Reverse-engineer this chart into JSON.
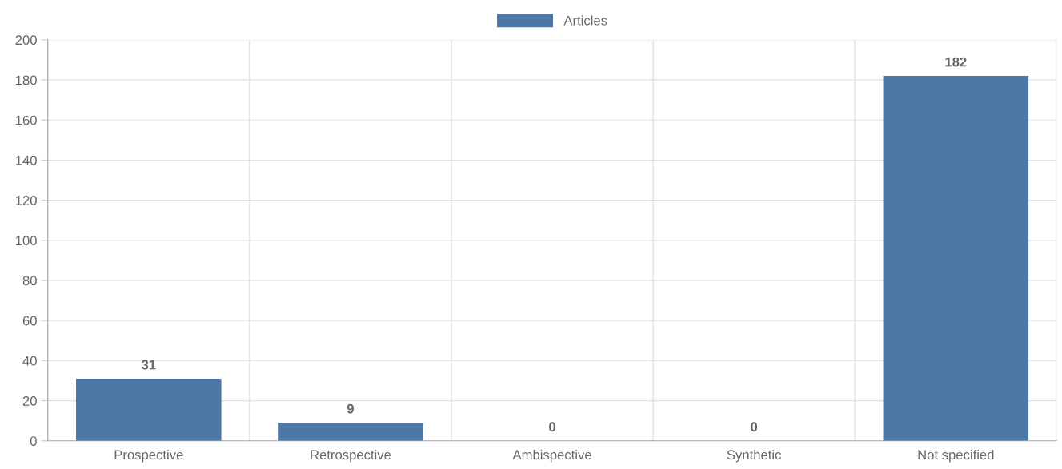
{
  "chart_data": {
    "type": "bar",
    "categories": [
      "Prospective",
      "Retrospective",
      "Ambispective",
      "Synthetic",
      "Not specified"
    ],
    "series": [
      {
        "name": "Articles",
        "color": "#4d77a5",
        "values": [
          31,
          9,
          0,
          0,
          182
        ]
      }
    ],
    "ylim": [
      0,
      200
    ],
    "yticks": [
      0,
      20,
      40,
      60,
      80,
      100,
      120,
      140,
      160,
      180,
      200
    ],
    "grid": true,
    "legend": "top",
    "data_labels": true
  }
}
